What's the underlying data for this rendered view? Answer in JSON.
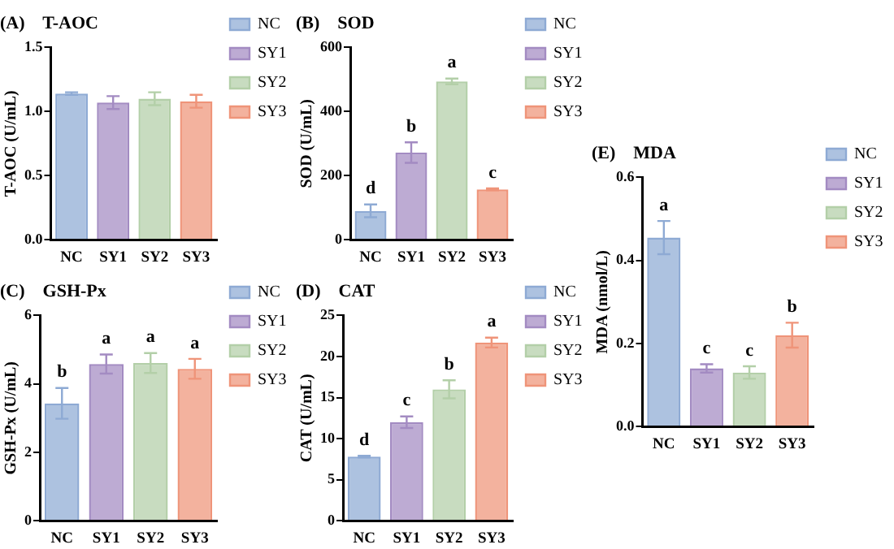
{
  "chart_data": [
    {
      "type": "bar",
      "title": "(A)    T-AOC",
      "ylabel": "T-AOC (U/mL)",
      "categories": [
        "NC",
        "SY1",
        "SY2",
        "SY3"
      ],
      "legend": "right",
      "ylim": [
        0,
        1.5
      ],
      "yticks": [
        {
          "value": 0,
          "label": "0.0"
        },
        {
          "value": 0.5,
          "label": "0.5"
        },
        {
          "value": 1,
          "label": "1.0"
        },
        {
          "value": 1.5,
          "label": "1.5"
        }
      ],
      "grid": false,
      "series": [
        {
          "name": "NC",
          "color": "#8eaad4",
          "values": [
            1.14,
            null,
            null,
            null
          ],
          "errors": [
            0.01,
            null,
            null,
            null
          ]
        },
        {
          "name": "SY1",
          "color": "#a38bc2",
          "values": [
            null,
            1.07,
            null,
            null
          ],
          "errors": [
            null,
            0.05,
            null,
            null
          ]
        },
        {
          "name": "SY2",
          "color": "#b3cfa8",
          "values": [
            null,
            null,
            1.1,
            null
          ],
          "errors": [
            null,
            null,
            0.05,
            null
          ]
        },
        {
          "name": "SY3",
          "color": "#ef9479",
          "values": [
            null,
            null,
            null,
            1.08
          ],
          "errors": [
            null,
            null,
            null,
            0.05
          ]
        }
      ]
    },
    {
      "type": "bar",
      "title": "(B)    SOD",
      "ylabel": "SOD (U/mL)",
      "categories": [
        "NC",
        "SY1",
        "SY2",
        "SY3"
      ],
      "legend": "right",
      "ylim": [
        0,
        600
      ],
      "yticks": [
        0,
        200,
        400,
        600
      ],
      "grid": false,
      "series": [
        {
          "name": "NC",
          "color": "#8eaad4",
          "values": [
            90,
            null,
            null,
            null
          ],
          "errors": [
            20,
            null,
            null,
            null
          ],
          "value_labels": [
            "d",
            null,
            null,
            null
          ]
        },
        {
          "name": "SY1",
          "color": "#a38bc2",
          "values": [
            null,
            272,
            null,
            null
          ],
          "errors": [
            null,
            32,
            null,
            null
          ],
          "value_labels": [
            null,
            "b",
            null,
            null
          ]
        },
        {
          "name": "SY2",
          "color": "#b3cfa8",
          "values": [
            null,
            null,
            494,
            null
          ],
          "errors": [
            null,
            null,
            9,
            null
          ],
          "value_labels": [
            null,
            null,
            "a",
            null
          ]
        },
        {
          "name": "SY3",
          "color": "#ef9479",
          "values": [
            null,
            null,
            null,
            157
          ],
          "errors": [
            null,
            null,
            null,
            3
          ],
          "value_labels": [
            null,
            null,
            null,
            "c"
          ]
        }
      ]
    },
    {
      "type": "bar",
      "title": "(C)    GSH-Px",
      "ylabel": "GSH-Px (U/mL)",
      "categories": [
        "NC",
        "SY1",
        "SY2",
        "SY3"
      ],
      "legend": "right",
      "ylim": [
        0,
        6
      ],
      "yticks": [
        0,
        2,
        4,
        6
      ],
      "grid": false,
      "series": [
        {
          "name": "NC",
          "color": "#8eaad4",
          "values": [
            3.43,
            null,
            null,
            null
          ],
          "errors": [
            0.45,
            null,
            null,
            null
          ],
          "value_labels": [
            "b",
            null,
            null,
            null
          ]
        },
        {
          "name": "SY1",
          "color": "#a38bc2",
          "values": [
            null,
            4.58,
            null,
            null
          ],
          "errors": [
            null,
            0.28,
            null,
            null
          ],
          "value_labels": [
            null,
            "a",
            null,
            null
          ]
        },
        {
          "name": "SY2",
          "color": "#b3cfa8",
          "values": [
            null,
            null,
            4.61,
            null
          ],
          "errors": [
            null,
            null,
            0.29,
            null
          ],
          "value_labels": [
            null,
            null,
            "a",
            null
          ]
        },
        {
          "name": "SY3",
          "color": "#ef9479",
          "values": [
            null,
            null,
            null,
            4.44
          ],
          "errors": [
            null,
            null,
            null,
            0.29
          ],
          "value_labels": [
            null,
            null,
            null,
            "a"
          ]
        }
      ]
    },
    {
      "type": "bar",
      "title": "(D)    CAT",
      "ylabel": "CAT (U/mL)",
      "categories": [
        "NC",
        "SY1",
        "SY2",
        "SY3"
      ],
      "legend": "right",
      "ylim": [
        0,
        25
      ],
      "yticks": [
        0,
        5,
        10,
        15,
        20,
        25
      ],
      "grid": false,
      "series": [
        {
          "name": "NC",
          "color": "#8eaad4",
          "values": [
            7.8,
            null,
            null,
            null
          ],
          "errors": [
            0.1,
            null,
            null,
            null
          ],
          "value_labels": [
            "d",
            null,
            null,
            null
          ]
        },
        {
          "name": "SY1",
          "color": "#a38bc2",
          "values": [
            null,
            12.0,
            null,
            null
          ],
          "errors": [
            null,
            0.7,
            null,
            null
          ],
          "value_labels": [
            null,
            "c",
            null,
            null
          ]
        },
        {
          "name": "SY2",
          "color": "#b3cfa8",
          "values": [
            null,
            null,
            16.0,
            null
          ],
          "errors": [
            null,
            null,
            1.1,
            null
          ],
          "value_labels": [
            null,
            null,
            "b",
            null
          ]
        },
        {
          "name": "SY3",
          "color": "#ef9479",
          "values": [
            null,
            null,
            null,
            21.7
          ],
          "errors": [
            null,
            null,
            null,
            0.6
          ],
          "value_labels": [
            null,
            null,
            null,
            "a"
          ]
        }
      ]
    },
    {
      "type": "bar",
      "title": "(E)    MDA",
      "ylabel": "MDA (nmol/L)",
      "categories": [
        "NC",
        "SY1",
        "SY2",
        "SY3"
      ],
      "legend": "right",
      "ylim": [
        0,
        0.6
      ],
      "yticks": [
        {
          "value": 0,
          "label": "0.0"
        },
        {
          "value": 0.2,
          "label": "0.2"
        },
        {
          "value": 0.4,
          "label": "0.4"
        },
        {
          "value": 0.6,
          "label": "0.6"
        }
      ],
      "grid": false,
      "series": [
        {
          "name": "NC",
          "color": "#8eaad4",
          "values": [
            0.455,
            null,
            null,
            null
          ],
          "errors": [
            0.04,
            null,
            null,
            null
          ],
          "value_labels": [
            "a",
            null,
            null,
            null
          ]
        },
        {
          "name": "SY1",
          "color": "#a38bc2",
          "values": [
            null,
            0.14,
            null,
            null
          ],
          "errors": [
            null,
            0.01,
            null,
            null
          ],
          "value_labels": [
            null,
            "c",
            null,
            null
          ]
        },
        {
          "name": "SY2",
          "color": "#b3cfa8",
          "values": [
            null,
            null,
            0.13,
            null
          ],
          "errors": [
            null,
            null,
            0.015,
            null
          ],
          "value_labels": [
            null,
            null,
            "c",
            null
          ]
        },
        {
          "name": "SY3",
          "color": "#ef9479",
          "values": [
            null,
            null,
            null,
            0.22
          ],
          "errors": [
            null,
            null,
            null,
            0.03
          ],
          "value_labels": [
            null,
            null,
            null,
            "b"
          ]
        }
      ]
    }
  ]
}
